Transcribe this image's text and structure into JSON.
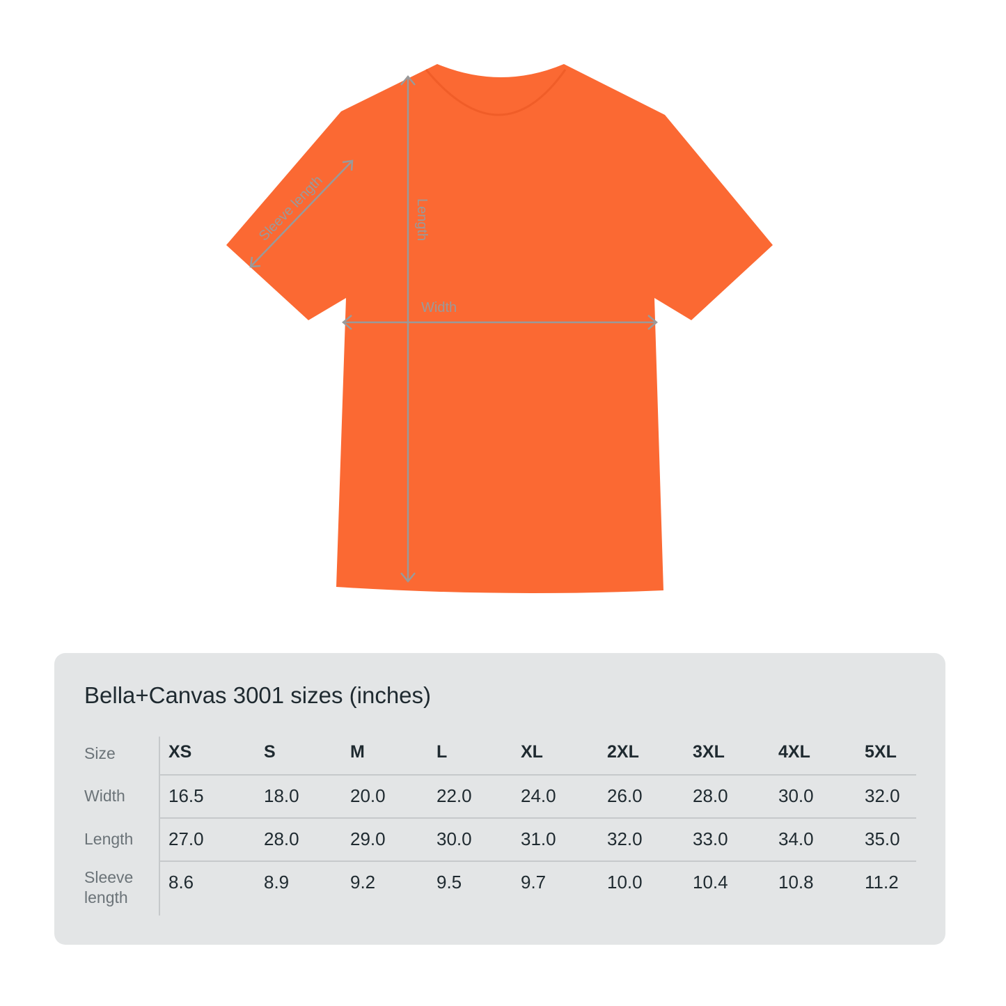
{
  "shirt": {
    "color": "#fb6933",
    "labels": {
      "length": "Length",
      "width": "Width",
      "sleeve": "Sleeve length"
    }
  },
  "table": {
    "title": "Bella+Canvas 3001 sizes (inches)",
    "header_label": "Size",
    "sizes": [
      "XS",
      "S",
      "M",
      "L",
      "XL",
      "2XL",
      "3XL",
      "4XL",
      "5XL"
    ],
    "rows": [
      {
        "label": "Width",
        "values": [
          "16.5",
          "18.0",
          "20.0",
          "22.0",
          "24.0",
          "26.0",
          "28.0",
          "30.0",
          "32.0"
        ]
      },
      {
        "label": "Length",
        "values": [
          "27.0",
          "28.0",
          "29.0",
          "30.0",
          "31.0",
          "32.0",
          "33.0",
          "34.0",
          "35.0"
        ]
      },
      {
        "label": "Sleeve length",
        "values": [
          "8.6",
          "8.9",
          "9.2",
          "9.5",
          "9.7",
          "10.0",
          "10.4",
          "10.8",
          "11.2"
        ]
      }
    ]
  }
}
